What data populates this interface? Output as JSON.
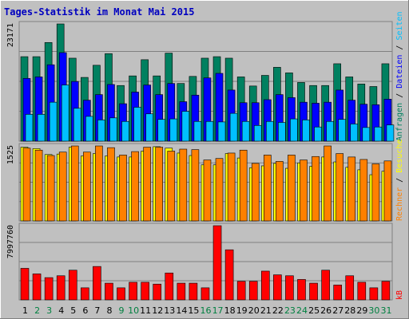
{
  "colors": {
    "background": "#c0c0c0",
    "frame_light": "#ffffff",
    "frame_dark": "#808080",
    "title": "#0000c0",
    "grid": "#808080",
    "day_weekday": "#000000",
    "day_weekend": "#008040",
    "anfragen": "#008060",
    "dateien": "#0000ff",
    "seiten": "#00c0ff",
    "besuche": "#ffff00",
    "rechner": "#ff8000",
    "kb": "#ff0000",
    "legend_separator": "#000000"
  },
  "chart_data": {
    "type": "bar",
    "title": "Tages-Statistik im Monat Mai 2015",
    "categories": [
      "1",
      "2",
      "3",
      "4",
      "5",
      "6",
      "7",
      "8",
      "9",
      "10",
      "11",
      "12",
      "13",
      "14",
      "15",
      "16",
      "17",
      "18",
      "19",
      "20",
      "21",
      "22",
      "23",
      "24",
      "25",
      "26",
      "27",
      "28",
      "29",
      "30",
      "31"
    ],
    "weekend_days": [
      "2",
      "3",
      "9",
      "10",
      "16",
      "17",
      "23",
      "24",
      "30",
      "31"
    ],
    "panels": [
      {
        "name": "requests",
        "max_label": "23171",
        "ylim": [
          0,
          23171
        ],
        "grid_fractions": [
          0.25,
          0.5,
          0.75
        ],
        "legend": [
          {
            "label": "Anfragen",
            "color_key": "anfragen"
          },
          {
            "label": "Dateien",
            "color_key": "dateien"
          },
          {
            "label": "Seiten",
            "color_key": "seiten"
          }
        ],
        "series": [
          {
            "name": "Anfragen",
            "color_key": "anfragen",
            "values": [
              16700,
              16700,
              19500,
              23171,
              16400,
              12600,
              15000,
              17300,
              11000,
              12900,
              16100,
              12900,
              17400,
              11400,
              12800,
              16400,
              16700,
              16400,
              12700,
              10900,
              13000,
              14600,
              13500,
              11600,
              11000,
              11000,
              15300,
              12700,
              11300,
              10800,
              15300
            ]
          },
          {
            "name": "Dateien",
            "color_key": "dateien",
            "values": [
              12400,
              12700,
              15100,
              17500,
              11800,
              8100,
              9200,
              11200,
              7400,
              9700,
              11100,
              9200,
              11400,
              7800,
              9100,
              12500,
              13400,
              10100,
              7600,
              7600,
              8200,
              9200,
              8600,
              7700,
              7500,
              7700,
              10100,
              8100,
              7300,
              7200,
              8300
            ]
          },
          {
            "name": "Seiten",
            "color_key": "seiten",
            "values": [
              5300,
              5300,
              7700,
              11100,
              6500,
              4900,
              4200,
              4600,
              3900,
              6700,
              5400,
              4300,
              4400,
              5900,
              3900,
              3900,
              3800,
              5500,
              3900,
              3100,
              3900,
              3700,
              4400,
              4200,
              2800,
              3900,
              4300,
              3400,
              2700,
              2800,
              3200
            ]
          }
        ]
      },
      {
        "name": "visits",
        "max_label": "1525",
        "ylim": [
          0,
          1525
        ],
        "grid_fractions": [
          0.25,
          0.5,
          0.75
        ],
        "legend": [
          {
            "label": "Rechner",
            "color_key": "rechner"
          },
          {
            "label": "Besuche",
            "color_key": "besuche"
          }
        ],
        "series": [
          {
            "name": "Besuche",
            "color_key": "besuche",
            "values": [
              1500,
              1470,
              1350,
              1360,
              1500,
              1320,
              1370,
              1320,
              1300,
              1300,
              1420,
              1510,
              1480,
              1380,
              1330,
              1140,
              1140,
              1370,
              1280,
              1080,
              1120,
              1170,
              1070,
              1180,
              1110,
              1300,
              1200,
              1090,
              1040,
              940,
              1010
            ]
          },
          {
            "name": "Rechner",
            "color_key": "rechner",
            "values": [
              1480,
              1440,
              1330,
              1400,
              1525,
              1400,
              1525,
              1490,
              1340,
              1410,
              1500,
              1500,
              1420,
              1460,
              1450,
              1240,
              1270,
              1380,
              1440,
              1170,
              1340,
              1210,
              1340,
              1240,
              1310,
              1525,
              1370,
              1300,
              1250,
              1160,
              1220
            ]
          }
        ]
      },
      {
        "name": "traffic",
        "max_label": "7997760",
        "ylim": [
          0,
          7997760
        ],
        "grid_fractions": [
          0.25,
          0.5,
          0.75
        ],
        "legend": [
          {
            "label": "kB",
            "color_key": "kb"
          }
        ],
        "series": [
          {
            "name": "kB",
            "color_key": "kb",
            "values": [
              3400000,
              2800000,
              2400000,
              2600000,
              3200000,
              1300000,
              3600000,
              1800000,
              1300000,
              1900000,
              1900000,
              1700000,
              2900000,
              1800000,
              1800000,
              1300000,
              7997760,
              5400000,
              2000000,
              2000000,
              3100000,
              2700000,
              2600000,
              2200000,
              1800000,
              3200000,
              1600000,
              2600000,
              1900000,
              1300000,
              2000000
            ]
          }
        ]
      }
    ]
  }
}
